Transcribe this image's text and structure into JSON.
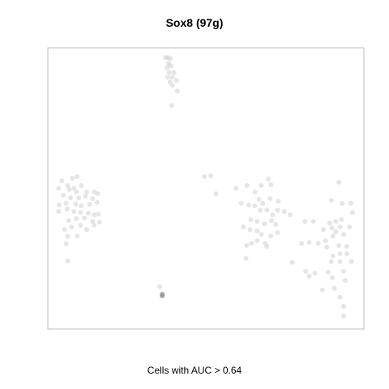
{
  "chart_data": {
    "type": "scatter",
    "title": "Sox8 (97g)",
    "xlabel": "Cells with AUC > 0.64",
    "ylabel": "",
    "grid": false,
    "legend": "none",
    "point_color": "#cfcfcf",
    "highlight_color": "#8c8c8c",
    "xlim": [
      0,
      100
    ],
    "ylim": [
      0,
      100
    ],
    "series": [
      {
        "values": [
          [
            37.2,
            96.5
          ],
          [
            38.0,
            96.5
          ],
          [
            38.7,
            96.2
          ],
          [
            38.2,
            94.5
          ],
          [
            37.7,
            93.0
          ],
          [
            39.0,
            93.6
          ],
          [
            38.4,
            91.3
          ],
          [
            39.9,
            91.3
          ],
          [
            37.9,
            89.6
          ],
          [
            39.4,
            89.6
          ],
          [
            38.7,
            87.8
          ],
          [
            40.7,
            88.4
          ],
          [
            39.4,
            86.7
          ],
          [
            41.0,
            84.6
          ],
          [
            39.2,
            79.5
          ],
          [
            4.4,
            52.7
          ],
          [
            7.8,
            53.6
          ],
          [
            9.3,
            54.2
          ],
          [
            6.3,
            51.0
          ],
          [
            8.3,
            50.1
          ],
          [
            10.6,
            51.0
          ],
          [
            3.4,
            50.1
          ],
          [
            6.8,
            49.6
          ],
          [
            9.0,
            48.7
          ],
          [
            12.3,
            48.7
          ],
          [
            14.7,
            48.7
          ],
          [
            15.8,
            48.1
          ],
          [
            4.9,
            47.6
          ],
          [
            7.2,
            46.7
          ],
          [
            9.8,
            46.7
          ],
          [
            11.9,
            47.2
          ],
          [
            14.2,
            46.4
          ],
          [
            3.6,
            44.1
          ],
          [
            5.8,
            44.7
          ],
          [
            8.8,
            44.4
          ],
          [
            10.6,
            43.8
          ],
          [
            13.2,
            44.4
          ],
          [
            15.6,
            45.0
          ],
          [
            3.4,
            41.8
          ],
          [
            6.1,
            42.7
          ],
          [
            8.3,
            41.8
          ],
          [
            10.3,
            41.5
          ],
          [
            12.8,
            41.2
          ],
          [
            14.7,
            40.6
          ],
          [
            16.0,
            40.9
          ],
          [
            6.6,
            38.6
          ],
          [
            9.0,
            39.2
          ],
          [
            11.6,
            39.5
          ],
          [
            14.2,
            38.3
          ],
          [
            16.3,
            38.0
          ],
          [
            5.3,
            35.4
          ],
          [
            7.5,
            36.3
          ],
          [
            10.3,
            36.9
          ],
          [
            12.3,
            35.4
          ],
          [
            14.7,
            36.9
          ],
          [
            6.3,
            32.9
          ],
          [
            9.3,
            33.1
          ],
          [
            5.8,
            30.3
          ],
          [
            6.3,
            24.2
          ],
          [
            49.5,
            54.2
          ],
          [
            51.6,
            54.5
          ],
          [
            53.2,
            48.1
          ],
          [
            59.6,
            50.1
          ],
          [
            63.0,
            51.0
          ],
          [
            65.5,
            48.7
          ],
          [
            67.5,
            51.0
          ],
          [
            69.8,
            53.3
          ],
          [
            70.6,
            51.3
          ],
          [
            66.8,
            46.1
          ],
          [
            68.0,
            44.7
          ],
          [
            70.3,
            46.4
          ],
          [
            72.9,
            45.5
          ],
          [
            61.2,
            44.7
          ],
          [
            63.6,
            44.1
          ],
          [
            65.5,
            43.8
          ],
          [
            67.2,
            42.3
          ],
          [
            69.3,
            42.3
          ],
          [
            71.1,
            40.6
          ],
          [
            72.7,
            42.3
          ],
          [
            74.8,
            41.8
          ],
          [
            76.7,
            40.6
          ],
          [
            64.2,
            38.9
          ],
          [
            66.2,
            38.3
          ],
          [
            68.5,
            37.4
          ],
          [
            70.8,
            38.6
          ],
          [
            72.1,
            37.2
          ],
          [
            61.9,
            36.3
          ],
          [
            64.0,
            35.4
          ],
          [
            66.2,
            34.9
          ],
          [
            67.5,
            33.7
          ],
          [
            70.6,
            33.1
          ],
          [
            72.7,
            34.3
          ],
          [
            66.2,
            31.4
          ],
          [
            68.8,
            30.5
          ],
          [
            62.9,
            29.7
          ],
          [
            64.4,
            30.5
          ],
          [
            69.3,
            29.4
          ],
          [
            62.7,
            25.1
          ],
          [
            92.1,
            52.2
          ],
          [
            89.7,
            45.8
          ],
          [
            93.1,
            44.7
          ],
          [
            95.9,
            44.7
          ],
          [
            96.4,
            41.5
          ],
          [
            81.4,
            38.3
          ],
          [
            84.0,
            38.3
          ],
          [
            89.2,
            37.7
          ],
          [
            91.1,
            38.3
          ],
          [
            92.9,
            38.9
          ],
          [
            89.9,
            36.0
          ],
          [
            92.4,
            36.3
          ],
          [
            95.4,
            36.3
          ],
          [
            87.2,
            35.4
          ],
          [
            90.2,
            33.1
          ],
          [
            91.1,
            34.6
          ],
          [
            93.6,
            33.7
          ],
          [
            87.9,
            31.4
          ],
          [
            80.3,
            30.5
          ],
          [
            82.7,
            30.8
          ],
          [
            85.6,
            30.5
          ],
          [
            88.2,
            29.1
          ],
          [
            92.1,
            29.7
          ],
          [
            94.6,
            29.4
          ],
          [
            92.4,
            26.8
          ],
          [
            90.2,
            26.0
          ],
          [
            94.6,
            26.8
          ],
          [
            89.7,
            24.0
          ],
          [
            92.4,
            24.0
          ],
          [
            96.1,
            24.0
          ],
          [
            77.3,
            23.7
          ],
          [
            93.6,
            20.5
          ],
          [
            81.6,
            20.5
          ],
          [
            84.5,
            19.9
          ],
          [
            88.7,
            20.2
          ],
          [
            90.0,
            18.2
          ],
          [
            94.1,
            17.3
          ],
          [
            82.7,
            18.8
          ],
          [
            90.7,
            14.5
          ],
          [
            86.9,
            13.9
          ],
          [
            92.4,
            11.3
          ],
          [
            93.6,
            8.1
          ],
          [
            93.6,
            4.6
          ],
          [
            35.4,
            15.0
          ],
          [
            36.2,
            12.4
          ],
          [
            36.2,
            11.8
          ]
        ]
      }
    ],
    "highlight_points": [
      [
        36.2,
        12.4
      ],
      [
        36.2,
        11.8
      ]
    ]
  }
}
